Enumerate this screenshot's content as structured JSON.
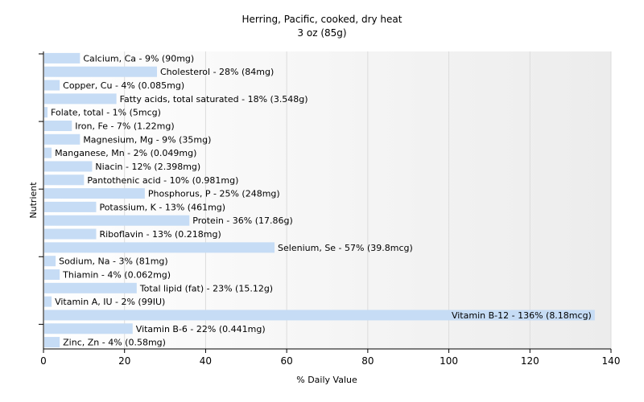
{
  "chart_data": {
    "type": "bar",
    "orientation": "horizontal",
    "title": "Herring, Pacific, cooked, dry heat",
    "subtitle": "3 oz (85g)",
    "xlabel": "% Daily Value",
    "ylabel": "Nutrient",
    "xlim": [
      0,
      140
    ],
    "xticks": [
      0,
      20,
      40,
      60,
      80,
      100,
      120,
      140
    ],
    "grid": true,
    "bar_color": "#c6dcf5",
    "categories": [
      "Calcium, Ca",
      "Cholesterol",
      "Copper, Cu",
      "Fatty acids, total saturated",
      "Folate, total",
      "Iron, Fe",
      "Magnesium, Mg",
      "Manganese, Mn",
      "Niacin",
      "Pantothenic acid",
      "Phosphorus, P",
      "Potassium, K",
      "Protein",
      "Riboflavin",
      "Selenium, Se",
      "Sodium, Na",
      "Thiamin",
      "Total lipid (fat)",
      "Vitamin A, IU",
      "Vitamin B-12",
      "Vitamin B-6",
      "Zinc, Zn"
    ],
    "values": [
      9,
      28,
      4,
      18,
      1,
      7,
      9,
      2,
      12,
      10,
      25,
      13,
      36,
      13,
      57,
      3,
      4,
      23,
      2,
      136,
      22,
      4
    ],
    "labels": [
      "Calcium, Ca - 9% (90mg)",
      "Cholesterol - 28% (84mg)",
      "Copper, Cu - 4% (0.085mg)",
      "Fatty acids, total saturated - 18% (3.548g)",
      "Folate, total - 1% (5mcg)",
      "Iron, Fe - 7% (1.22mg)",
      "Magnesium, Mg - 9% (35mg)",
      "Manganese, Mn - 2% (0.049mg)",
      "Niacin - 12% (2.398mg)",
      "Pantothenic acid - 10% (0.981mg)",
      "Phosphorus, P - 25% (248mg)",
      "Potassium, K - 13% (461mg)",
      "Protein - 36% (17.86g)",
      "Riboflavin - 13% (0.218mg)",
      "Selenium, Se - 57% (39.8mcg)",
      "Sodium, Na - 3% (81mg)",
      "Thiamin - 4% (0.062mg)",
      "Total lipid (fat) - 23% (15.12g)",
      "Vitamin A, IU - 2% (99IU)",
      "Vitamin B-12 - 136% (8.18mcg)",
      "Vitamin B-6 - 22% (0.441mg)",
      "Zinc, Zn - 4% (0.58mg)"
    ]
  }
}
